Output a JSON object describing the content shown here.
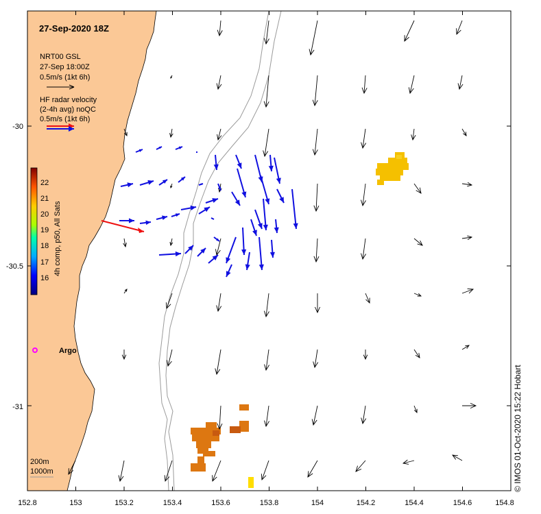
{
  "title": "27-Sep-2020 18Z",
  "credit": "© IMOS 01-Oct-2020 15:22 Hobart",
  "legend": {
    "gsl": [
      "NRT00 GSL",
      "27-Sep 18:00Z",
      "0.5m/s (1kt 6h)"
    ],
    "radar": [
      "HF radar velocity",
      "(2-4h avg) noQC",
      "0.5m/s (1kt 6h)"
    ]
  },
  "colorbar": {
    "label": "4h comp, p50, All Sats",
    "ticks": [
      "16",
      "17",
      "18",
      "19",
      "20",
      "21",
      "22"
    ]
  },
  "argo_label": "Argo",
  "depth_labels": [
    "200m",
    "1000m"
  ],
  "chart_data": {
    "type": "map",
    "x_ticks": [
      "152.8",
      "153",
      "153.2",
      "153.4",
      "153.6",
      "153.8",
      "154",
      "154.2",
      "154.4",
      "154.6",
      "154.8"
    ],
    "y_ticks": [
      "-30",
      "-30.5",
      "-31"
    ],
    "xlim": [
      152.8,
      154.8
    ],
    "ylim": [
      -31.3,
      -29.58
    ],
    "colors": {
      "land": "#fbc896",
      "radar_arrow": "#1010e0",
      "gsl_arrow": "#000000",
      "sst_orange": "#dd7711",
      "sst_yellow": "#f5c000",
      "argo": "#ff00ff",
      "coast_bathy": "#a0a0a0",
      "legend_red": "#ee1111"
    }
  }
}
